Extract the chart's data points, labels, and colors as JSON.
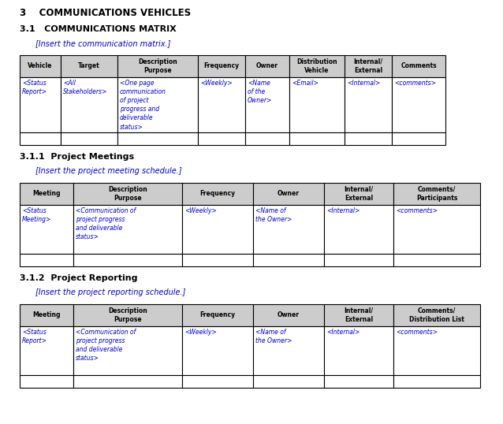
{
  "bg_color": "#ffffff",
  "text_color": "#000000",
  "blue_color": "#0000cc",
  "header_bg": "#CCCCCC",
  "section1_title": "3    COMMUNICATIONS VEHICLES",
  "section2_title": "3.1   COMMUNICATIONS MATRIX",
  "section2_italic": "[Insert the communication matrix.]",
  "table1_headers": [
    "Vehicle",
    "Target",
    "Description\nPurpose",
    "Frequency",
    "Owner",
    "Distribution\nVehicle",
    "Internal/\nExternal",
    "Comments"
  ],
  "table1_col_widths": [
    52,
    72,
    102,
    60,
    56,
    70,
    60,
    68
  ],
  "table1_data_row1": [
    "<Status\nReport>",
    "<All\nStakeholders>",
    "<One page\ncommunication\nof project\nprogress and\ndeliverable\nstatus>",
    "<Weekly>",
    "<Name\nof the\nOwner>",
    "<Email>",
    "<Internal>",
    "<comments>"
  ],
  "table1_data_row2": [
    "",
    "",
    "",
    "",
    "",
    "",
    "",
    ""
  ],
  "section3_title": "3.1.1  Project Meetings",
  "section3_italic": "[Insert the project meeting schedule.]",
  "table2_headers": [
    "Meeting",
    "Description\nPurpose",
    "Frequency",
    "Owner",
    "Internal/\nExternal",
    "Comments/\nParticipants"
  ],
  "table2_col_widths": [
    68,
    138,
    90,
    90,
    88,
    110
  ],
  "table2_data_row1": [
    "<Status\nMeeting>",
    "<Communication of\nproject progress\nand deliverable\nstatus>",
    "<Weekly>",
    "<Name of\nthe Owner>",
    "<Internal>",
    "<comments>"
  ],
  "table2_data_row2": [
    "",
    "",
    "",
    "",
    "",
    ""
  ],
  "section4_title": "3.1.2  Project Reporting",
  "section4_italic": "[Insert the project reporting schedule.]",
  "table3_headers": [
    "Meeting",
    "Description\nPurpose",
    "Frequency",
    "Owner",
    "Internal/\nExternal",
    "Comments/\nDistribution List"
  ],
  "table3_col_widths": [
    68,
    138,
    90,
    90,
    88,
    110
  ],
  "table3_data_row1": [
    "<Status\nReport>",
    "<Communication of\nproject progress\nand deliverable\nstatus>",
    "<Weekly>",
    "<Name of\nthe Owner>",
    "<Internal>",
    "<comments>"
  ],
  "table3_data_row2": [
    "",
    "",
    "",
    "",
    "",
    ""
  ]
}
